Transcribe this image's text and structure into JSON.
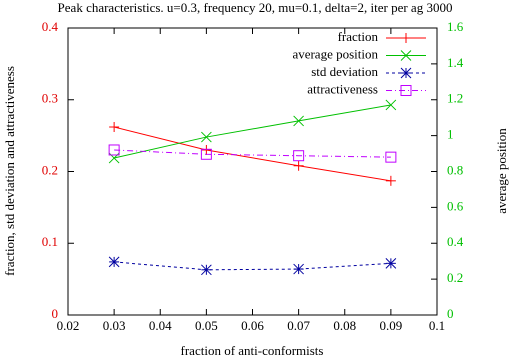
{
  "chart_data": {
    "type": "line",
    "title": "Peak characteristics. u=0.3, frequency 20, mu=0.1, delta=2, iter per ag 3000",
    "x_label": "fraction of anti-conformists",
    "y_label": "fraction, std deviation and attractiveness",
    "y2_label": "average position",
    "x": [
      0.03,
      0.05,
      0.07,
      0.09
    ],
    "series": [
      {
        "name": "fraction",
        "color": "#ff0000",
        "marker": "plus",
        "dash": "solid",
        "values": [
          0.262,
          0.23,
          0.208,
          0.187
        ]
      },
      {
        "name": "average position",
        "color": "#00c000",
        "marker": "cross",
        "dash": "solid",
        "axis": "y2",
        "values": [
          0.875,
          0.992,
          1.082,
          1.171
        ]
      },
      {
        "name": "std deviation",
        "color": "#0000a0",
        "marker": "star",
        "dash": "dashed",
        "values": [
          0.074,
          0.063,
          0.064,
          0.072
        ]
      },
      {
        "name": "attractiveness",
        "color": "#c000ff",
        "marker": "box",
        "dash": "dashdot",
        "values": [
          0.23,
          0.224,
          0.222,
          0.22
        ]
      }
    ],
    "xlim": [
      0.02,
      0.1
    ],
    "xticks": [
      0.02,
      0.03,
      0.04,
      0.05,
      0.06,
      0.07,
      0.08,
      0.09,
      0.1
    ],
    "ylim": [
      0,
      0.4
    ],
    "yticks": [
      0,
      0.1,
      0.2,
      0.3,
      0.4
    ],
    "ytick_color": "#e00000",
    "y2lim": [
      0,
      1.6
    ],
    "y2ticks": [
      0,
      0.2,
      0.4,
      0.6,
      0.8,
      1,
      1.2,
      1.4,
      1.6
    ],
    "y2tick_color": "#00c000",
    "legend": "top-right"
  }
}
